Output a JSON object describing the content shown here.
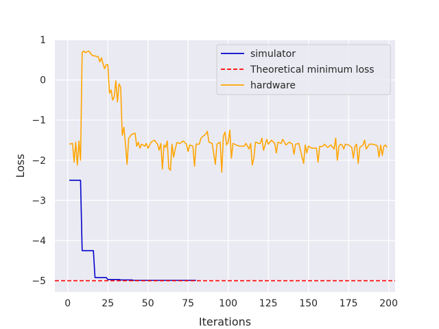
{
  "chart_data": {
    "type": "line",
    "title": "",
    "xlabel": "Iterations",
    "ylabel": "Loss",
    "xlim": [
      -8,
      204
    ],
    "ylim": [
      -5.28,
      1.0
    ],
    "xticks": [
      0,
      25,
      50,
      75,
      100,
      125,
      150,
      175,
      200
    ],
    "yticks": [
      -5,
      -4,
      -3,
      -2,
      -1,
      0,
      1
    ],
    "ytick_labels": [
      "−5",
      "−4",
      "−3",
      "−2",
      "−1",
      "0",
      "1"
    ],
    "grid": true,
    "legend_position": "top-right",
    "series": [
      {
        "name": "simulator",
        "color": "#0000cc",
        "style": "solid",
        "points": [
          [
            1,
            -2.5
          ],
          [
            8,
            -2.5
          ],
          [
            9,
            -4.25
          ],
          [
            16,
            -4.25
          ],
          [
            17,
            -4.92
          ],
          [
            24,
            -4.92
          ],
          [
            25,
            -4.97
          ],
          [
            32,
            -4.97
          ],
          [
            33,
            -4.98
          ],
          [
            40,
            -4.98
          ],
          [
            41,
            -4.99
          ],
          [
            80,
            -4.99
          ]
        ]
      },
      {
        "name": "Theoretical minimum loss",
        "color": "#ff0000",
        "style": "dashed",
        "points": [
          [
            -8,
            -5.0
          ],
          [
            204,
            -5.0
          ]
        ]
      },
      {
        "name": "hardware",
        "color": "#ffa500",
        "style": "solid",
        "points": [
          [
            1,
            -1.6
          ],
          [
            3,
            -1.58
          ],
          [
            4,
            -2.05
          ],
          [
            5,
            -1.55
          ],
          [
            6,
            -2.12
          ],
          [
            7,
            -1.52
          ],
          [
            8,
            -2.0
          ],
          [
            9,
            0.68
          ],
          [
            10,
            0.72
          ],
          [
            11,
            0.68
          ],
          [
            12,
            0.7
          ],
          [
            13,
            0.72
          ],
          [
            14,
            0.68
          ],
          [
            15,
            0.62
          ],
          [
            16,
            0.6
          ],
          [
            17,
            0.6
          ],
          [
            18,
            0.58
          ],
          [
            19,
            0.58
          ],
          [
            20,
            0.45
          ],
          [
            21,
            0.55
          ],
          [
            22,
            0.4
          ],
          [
            23,
            0.28
          ],
          [
            24,
            0.38
          ],
          [
            25,
            0.38
          ],
          [
            26,
            -0.33
          ],
          [
            27,
            -0.25
          ],
          [
            28,
            -0.5
          ],
          [
            29,
            -0.42
          ],
          [
            30,
            -0.02
          ],
          [
            31,
            -0.55
          ],
          [
            32,
            -0.1
          ],
          [
            33,
            -0.18
          ],
          [
            34,
            -1.38
          ],
          [
            35,
            -1.18
          ],
          [
            36,
            -1.6
          ],
          [
            37,
            -2.1
          ],
          [
            38,
            -1.45
          ],
          [
            40,
            -1.35
          ],
          [
            42,
            -1.33
          ],
          [
            43,
            -1.65
          ],
          [
            44,
            -1.55
          ],
          [
            45,
            -1.7
          ],
          [
            46,
            -1.6
          ],
          [
            48,
            -1.65
          ],
          [
            49,
            -1.58
          ],
          [
            50,
            -1.7
          ],
          [
            52,
            -1.55
          ],
          [
            54,
            -1.5
          ],
          [
            56,
            -1.6
          ],
          [
            57,
            -1.75
          ],
          [
            58,
            -1.58
          ],
          [
            59,
            -2.22
          ],
          [
            60,
            -1.62
          ],
          [
            61,
            -1.68
          ],
          [
            62,
            -1.52
          ],
          [
            63,
            -2.2
          ],
          [
            64,
            -2.25
          ],
          [
            65,
            -1.6
          ],
          [
            66,
            -1.92
          ],
          [
            67,
            -1.72
          ],
          [
            68,
            -1.56
          ],
          [
            70,
            -1.58
          ],
          [
            72,
            -1.52
          ],
          [
            74,
            -1.6
          ],
          [
            75,
            -1.78
          ],
          [
            76,
            -1.62
          ],
          [
            78,
            -1.65
          ],
          [
            79,
            -2.15
          ],
          [
            80,
            -1.6
          ],
          [
            82,
            -1.6
          ],
          [
            83,
            -1.45
          ],
          [
            85,
            -1.38
          ],
          [
            86,
            -1.35
          ],
          [
            87,
            -1.28
          ],
          [
            88,
            -1.55
          ],
          [
            90,
            -1.58
          ],
          [
            92,
            -2.1
          ],
          [
            93,
            -1.6
          ],
          [
            95,
            -1.55
          ],
          [
            96,
            -2.3
          ],
          [
            97,
            -1.4
          ],
          [
            98,
            -1.3
          ],
          [
            99,
            -1.62
          ],
          [
            100,
            -1.55
          ],
          [
            101,
            -1.25
          ],
          [
            102,
            -1.95
          ],
          [
            103,
            -1.58
          ],
          [
            105,
            -1.62
          ],
          [
            107,
            -1.65
          ],
          [
            110,
            -1.65
          ],
          [
            111,
            -1.58
          ],
          [
            113,
            -1.72
          ],
          [
            114,
            -1.58
          ],
          [
            115,
            -2.12
          ],
          [
            116,
            -1.95
          ],
          [
            117,
            -1.55
          ],
          [
            119,
            -1.58
          ],
          [
            120,
            -1.58
          ],
          [
            121,
            -1.45
          ],
          [
            122,
            -1.75
          ],
          [
            123,
            -1.62
          ],
          [
            124,
            -1.48
          ],
          [
            125,
            -1.6
          ],
          [
            127,
            -1.5
          ],
          [
            129,
            -1.58
          ],
          [
            130,
            -1.82
          ],
          [
            131,
            -1.55
          ],
          [
            133,
            -1.58
          ],
          [
            134,
            -1.48
          ],
          [
            136,
            -1.62
          ],
          [
            138,
            -1.55
          ],
          [
            140,
            -1.6
          ],
          [
            141,
            -1.85
          ],
          [
            142,
            -1.6
          ],
          [
            144,
            -1.58
          ],
          [
            145,
            -1.75
          ],
          [
            147,
            -2.08
          ],
          [
            148,
            -1.62
          ],
          [
            149,
            -1.82
          ],
          [
            150,
            -1.65
          ],
          [
            152,
            -1.7
          ],
          [
            155,
            -1.7
          ],
          [
            156,
            -2.05
          ],
          [
            157,
            -1.65
          ],
          [
            158,
            -1.66
          ],
          [
            159,
            -1.65
          ],
          [
            160,
            -1.6
          ],
          [
            162,
            -1.68
          ],
          [
            164,
            -1.62
          ],
          [
            166,
            -1.72
          ],
          [
            167,
            -1.45
          ],
          [
            168,
            -2.0
          ],
          [
            169,
            -1.65
          ],
          [
            170,
            -1.6
          ],
          [
            171,
            -1.62
          ],
          [
            172,
            -1.72
          ],
          [
            173,
            -1.6
          ],
          [
            175,
            -1.62
          ],
          [
            177,
            -1.68
          ],
          [
            178,
            -1.95
          ],
          [
            179,
            -1.65
          ],
          [
            180,
            -1.6
          ],
          [
            181,
            -2.08
          ],
          [
            182,
            -1.68
          ],
          [
            184,
            -1.62
          ],
          [
            185,
            -1.5
          ],
          [
            186,
            -1.72
          ],
          [
            188,
            -1.6
          ],
          [
            190,
            -1.6
          ],
          [
            192,
            -1.62
          ],
          [
            193,
            -1.65
          ],
          [
            194,
            -1.92
          ],
          [
            195,
            -1.62
          ],
          [
            196,
            -1.88
          ],
          [
            197,
            -1.65
          ],
          [
            198,
            -1.62
          ],
          [
            199,
            -1.68
          ]
        ]
      }
    ]
  }
}
